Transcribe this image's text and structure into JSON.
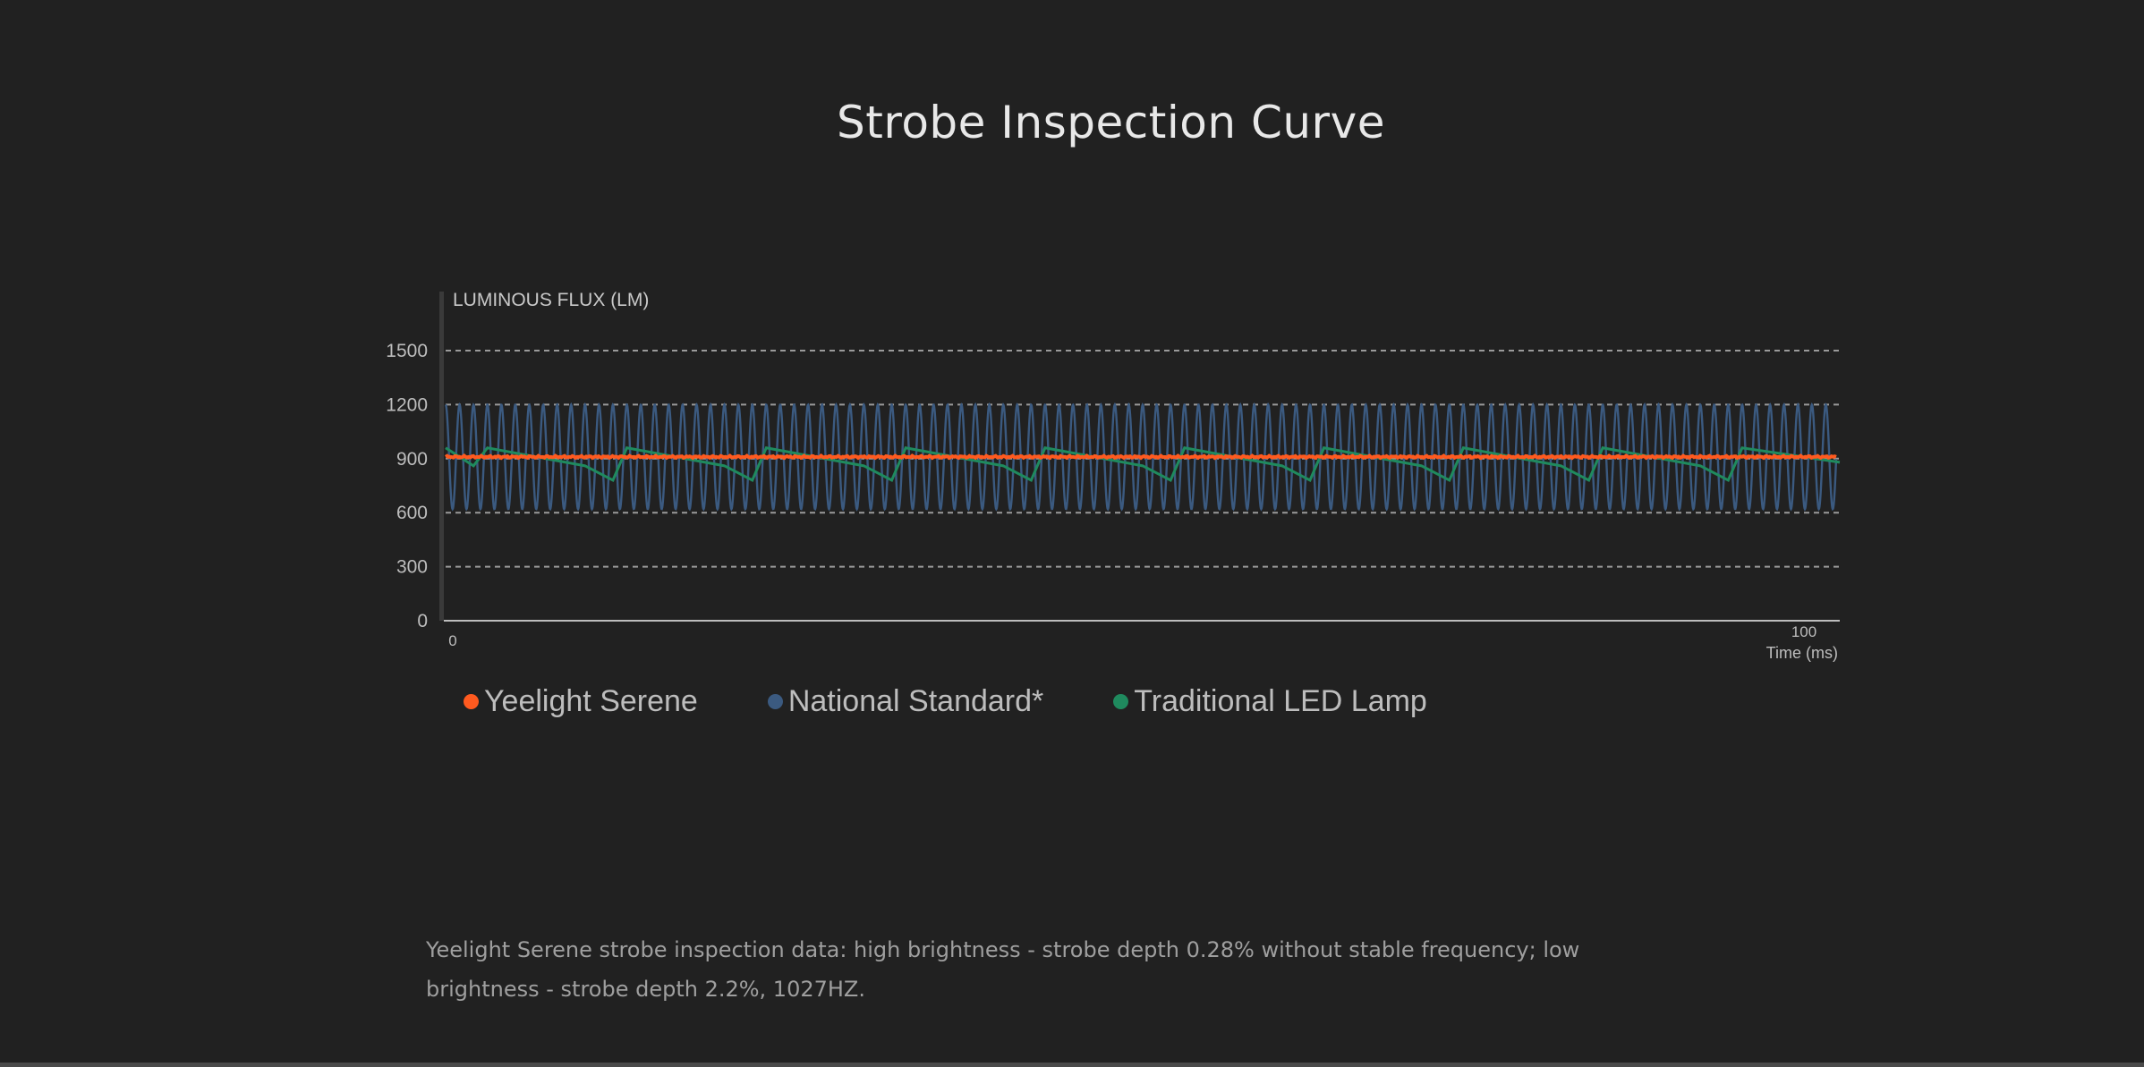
{
  "page": {
    "title": "Strobe Inspection Curve",
    "caption_line1": "Yeelight Serene strobe inspection data: high brightness  -  strobe depth 0.28% without stable frequency; low",
    "caption_line2": "brightness  -  strobe depth 2.2%, 1027HZ."
  },
  "chart_data": {
    "type": "line",
    "ylabel": "LUMINOUS FLUX (LM)",
    "xlabel": "Time (ms)",
    "xlim": [
      0,
      100
    ],
    "ylim": [
      0,
      1500
    ],
    "x_ticks": [
      "0",
      "100"
    ],
    "y_ticks": [
      "1500",
      "1200",
      "900",
      "600",
      "300",
      "0"
    ],
    "y_tick_values": [
      1500,
      1200,
      900,
      600,
      300,
      0
    ],
    "grid": "dashed horizontal",
    "legend_placement": "bottom-left",
    "series": [
      {
        "name": "National Standard*",
        "color": "#3b5a80",
        "shape": "sine",
        "min": 620,
        "max": 1200,
        "cycles": 100
      },
      {
        "name": "Traditional LED Lamp",
        "color": "#1f8a5e",
        "shape": "sawtooth",
        "x": [
          0,
          2,
          3,
          10,
          12,
          13,
          20,
          22,
          23,
          30,
          32,
          33,
          40,
          42,
          43,
          50,
          52,
          53,
          60,
          62,
          63,
          70,
          72,
          73,
          80,
          82,
          83,
          90,
          92,
          93,
          100
        ],
        "values": [
          960,
          860,
          960,
          860,
          780,
          960,
          860,
          780,
          960,
          860,
          780,
          960,
          860,
          780,
          960,
          860,
          780,
          960,
          860,
          780,
          960,
          860,
          780,
          960,
          860,
          780,
          960,
          860,
          780,
          960,
          880
        ]
      },
      {
        "name": "Yeelight Serene",
        "color": "#ff5a1f",
        "shape": "flat",
        "base": 910,
        "ripple": 6
      }
    ]
  }
}
